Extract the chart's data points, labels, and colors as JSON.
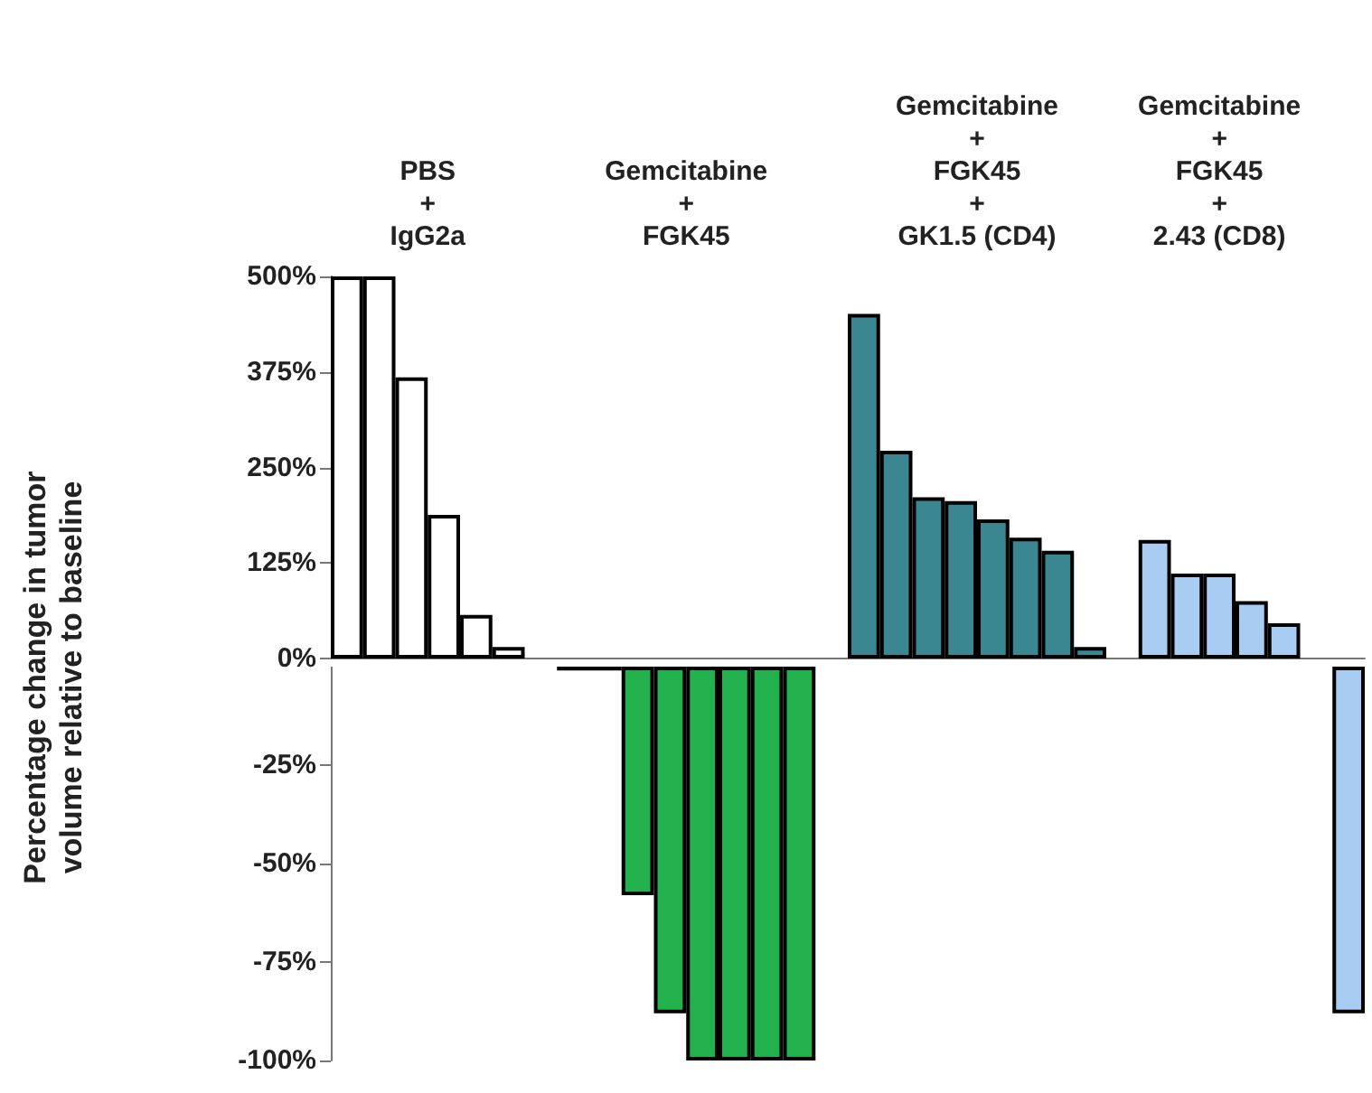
{
  "chart_data": [
    {
      "type": "bar",
      "ylabel": "Percentage change in tumor\nvolume relative to baseline",
      "annotations": [
        "PBS\n+\nIgG2a",
        "Gemcitabine\n+\nFGK45",
        "Gemcitabine\n+\nFGK45\n+\nGK1.5 (CD4)",
        "Gemcitabine\n+\nFGK45\n+\n2.43 (CD8)"
      ],
      "categories": [
        null,
        null,
        null,
        null,
        null,
        null,
        null,
        null,
        null,
        null,
        null,
        null,
        null,
        null,
        null,
        null,
        null,
        null,
        null,
        null,
        null,
        null,
        null,
        null,
        null,
        null,
        null,
        null,
        null,
        null,
        null,
        null
      ],
      "series": [
        {
          "color": "#ffffff",
          "values": [
            500,
            500,
            368,
            188,
            57,
            15,
            null,
            null,
            null,
            null,
            null,
            null,
            null,
            null,
            null,
            null,
            null,
            null,
            null,
            null,
            null,
            null,
            null,
            null,
            null,
            null,
            null,
            null,
            null,
            null,
            null,
            null
          ]
        },
        {
          "color": "#22b14c",
          "values": [
            null,
            null,
            null,
            null,
            null,
            null,
            null,
            null,
            null,
            null,
            null,
            null,
            null,
            null,
            null,
            null,
            null,
            null,
            null,
            null,
            null,
            null,
            null,
            null,
            null,
            null,
            null,
            null,
            null,
            null,
            null,
            null
          ]
        },
        {
          "color": "#3a8791",
          "values": [
            null,
            null,
            null,
            null,
            null,
            null,
            null,
            null,
            null,
            null,
            null,
            null,
            null,
            null,
            null,
            null,
            451,
            272,
            211,
            206,
            182,
            158,
            141,
            15,
            null,
            null,
            null,
            null,
            null,
            null,
            null,
            null
          ]
        },
        {
          "color": "#a9cdf2",
          "values": [
            null,
            null,
            null,
            null,
            null,
            null,
            null,
            null,
            null,
            null,
            null,
            null,
            null,
            null,
            null,
            null,
            null,
            null,
            null,
            null,
            null,
            null,
            null,
            null,
            null,
            155,
            111,
            111,
            75,
            46,
            null,
            null
          ]
        }
      ],
      "ylim": [
        0,
        500
      ],
      "yticks": [
        {
          "value": 0,
          "label": "0%"
        },
        {
          "value": 125,
          "label": "125%"
        },
        {
          "value": 250,
          "label": "250%"
        },
        {
          "value": 375,
          "label": "375%"
        },
        {
          "value": 500,
          "label": "500%"
        }
      ],
      "tick_labels": "y",
      "grid": false
    },
    {
      "type": "bar",
      "categories": [
        null,
        null,
        null,
        null,
        null,
        null,
        null,
        null,
        null,
        null,
        null,
        null,
        null,
        null,
        null,
        null,
        null,
        null,
        null,
        null,
        null,
        null,
        null,
        null,
        null,
        null,
        null,
        null,
        null,
        null,
        null,
        null
      ],
      "series": [
        {
          "color": "#ffffff",
          "values": [
            null,
            null,
            null,
            null,
            null,
            null,
            null,
            null,
            null,
            null,
            null,
            null,
            null,
            null,
            null,
            null,
            null,
            null,
            null,
            null,
            null,
            null,
            null,
            null,
            null,
            null,
            null,
            null,
            null,
            null,
            null,
            null
          ]
        },
        {
          "color": "#22b14c",
          "values": [
            null,
            null,
            null,
            null,
            null,
            null,
            null,
            -1,
            -1,
            -58,
            -88,
            -100,
            -100,
            -100,
            -100,
            null,
            null,
            null,
            null,
            null,
            null,
            null,
            null,
            null,
            null,
            null,
            null,
            null,
            null,
            null,
            null,
            null
          ]
        },
        {
          "color": "#3a8791",
          "values": [
            null,
            null,
            null,
            null,
            null,
            null,
            null,
            null,
            null,
            null,
            null,
            null,
            null,
            null,
            null,
            null,
            null,
            null,
            null,
            null,
            null,
            null,
            null,
            null,
            null,
            null,
            null,
            null,
            null,
            null,
            null,
            null
          ]
        },
        {
          "color": "#a9cdf2",
          "values": [
            null,
            null,
            null,
            null,
            null,
            null,
            null,
            null,
            null,
            null,
            null,
            null,
            null,
            null,
            null,
            null,
            null,
            null,
            null,
            null,
            null,
            null,
            null,
            null,
            null,
            null,
            null,
            null,
            null,
            null,
            null,
            -88
          ]
        }
      ],
      "ylim": [
        -100,
        0
      ],
      "yticks": [
        {
          "value": -100,
          "label": "-100%"
        },
        {
          "value": -75,
          "label": "-75%"
        },
        {
          "value": -50,
          "label": "-50%"
        },
        {
          "value": -25,
          "label": "-25%"
        }
      ],
      "tick_labels": "y",
      "grid": false
    }
  ]
}
